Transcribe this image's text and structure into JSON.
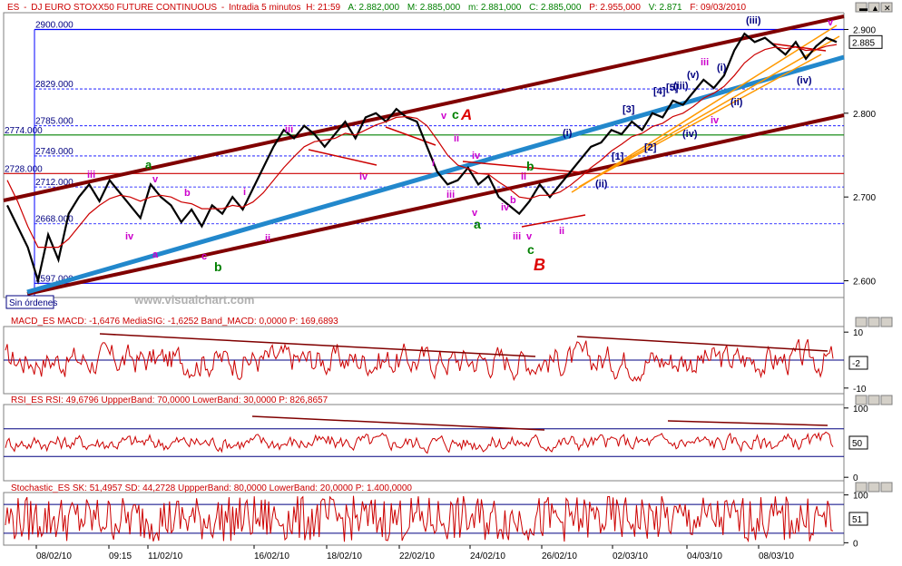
{
  "header": {
    "symbol": "ES",
    "title": "DJ EURO STOXX50 FUTURE CONTINUOUS",
    "interval": "Intradia 5 minutos",
    "h": "H: 21:59",
    "a": "A: 2.882,000",
    "m": "M: 2.885,000",
    "mm": "m: 2.881,000",
    "c": "C: 2.885,000",
    "p": "P: 2.955,000",
    "v": "V: 2.871",
    "f": "F: 09/03/2010"
  },
  "watermark": "www.visualchart.com",
  "orders_button": "Sin órdenes",
  "price_panel": {
    "levels": [
      {
        "label": "2900.000",
        "value": 2900,
        "color": "#0000ff"
      },
      {
        "label": "2829.000",
        "value": 2829,
        "color": "#0000ff"
      },
      {
        "label": "2785.000",
        "value": 2785,
        "color": "#0000ff"
      },
      {
        "label": "2774.000",
        "value": 2774,
        "color": "#008000"
      },
      {
        "label": "2749.000",
        "value": 2749,
        "color": "#0000ff"
      },
      {
        "label": "2728.000",
        "value": 2728,
        "color": "#cc0000"
      },
      {
        "label": "2712.000",
        "value": 2712,
        "color": "#0000ff"
      },
      {
        "label": "2668.000",
        "value": 2668,
        "color": "#0000ff"
      },
      {
        "label": "2597.000",
        "value": 2597,
        "color": "#0000ff"
      }
    ],
    "y_ticks": [
      "2.900",
      "2.800",
      "2.700",
      "2.600"
    ],
    "last_price": "2.885"
  },
  "chart_data": [
    {
      "type": "line",
      "panel": "price",
      "ylim": [
        2580,
        2920
      ],
      "x_ticks": [
        "08/02/10",
        "09:15",
        "11/02/10",
        "16/02/10",
        "18/02/10",
        "22/02/10",
        "24/02/10",
        "26/02/10",
        "02/03/10",
        "04/03/10",
        "08/03/10"
      ],
      "series": [
        {
          "values": [
            2690,
            2665,
            2640,
            2600,
            2655,
            2625,
            2680,
            2700,
            2715,
            2695,
            2720,
            2705,
            2690,
            2675,
            2715,
            2700,
            2690,
            2670,
            2685,
            2665,
            2690,
            2680,
            2700,
            2685,
            2710,
            2735,
            2760,
            2780,
            2770,
            2785,
            2775,
            2760,
            2775,
            2790,
            2770,
            2795,
            2800,
            2790,
            2805,
            2795,
            2790,
            2760,
            2730,
            2715,
            2720,
            2735,
            2715,
            2725,
            2700,
            2690,
            2680,
            2695,
            2715,
            2700,
            2715,
            2730,
            2745,
            2760,
            2765,
            2780,
            2775,
            2790,
            2780,
            2800,
            2795,
            2815,
            2810,
            2825,
            2840,
            2830,
            2845,
            2875,
            2895,
            2885,
            2890,
            2880,
            2870,
            2885,
            2865,
            2880,
            2890,
            2885
          ]
        },
        {
          "values": [
            2720,
            2695,
            2665,
            2640,
            2640,
            2640,
            2650,
            2665,
            2680,
            2690,
            2698,
            2702,
            2700,
            2695,
            2700,
            2702,
            2700,
            2694,
            2692,
            2686,
            2686,
            2686,
            2690,
            2688,
            2694,
            2705,
            2720,
            2735,
            2748,
            2760,
            2766,
            2768,
            2770,
            2776,
            2774,
            2780,
            2786,
            2790,
            2795,
            2796,
            2794,
            2785,
            2768,
            2750,
            2738,
            2734,
            2728,
            2727,
            2718,
            2710,
            2700,
            2698,
            2702,
            2702,
            2706,
            2714,
            2724,
            2735,
            2744,
            2755,
            2763,
            2772,
            2776,
            2784,
            2788,
            2796,
            2800,
            2808,
            2818,
            2824,
            2832,
            2845,
            2860,
            2870,
            2876,
            2879,
            2877,
            2879,
            2875,
            2876,
            2880,
            2882
          ]
        }
      ]
    },
    {
      "type": "line",
      "panel": "macd",
      "title": "MACD_ES MACD: -1,6476 MediaSIG: -1,6252 Band_MACD: 0,0000 P: 169,6893",
      "ylim": [
        -12,
        12
      ],
      "y_ticks": [
        "10",
        "-10"
      ],
      "last_value": "-2"
    },
    {
      "type": "line",
      "panel": "rsi",
      "title": "RSI_ES RSI: 49,6796 UppperBand: 70,0000 LowerBand: 30,0000 P: 826,8657",
      "ylim": [
        -5,
        105
      ],
      "y_ticks": [
        "100",
        "0"
      ],
      "last_value": "50"
    },
    {
      "type": "line",
      "panel": "stochastic",
      "title": "Stochastic_ES SK: 51,4957 SD: 44,2728 UppperBand: 80,0000 LowerBand: 20,0000 P: 1.400,0000",
      "ylim": [
        -5,
        105
      ],
      "y_ticks": [
        "100",
        "0"
      ],
      "last_value": "51"
    }
  ],
  "wave_labels": [
    {
      "text": "iii",
      "color": "#cc00cc"
    },
    {
      "text": "a",
      "color": "#008000"
    },
    {
      "text": "v",
      "color": "#cc00cc"
    },
    {
      "text": "b",
      "color": "#cc00cc"
    },
    {
      "text": "iv",
      "color": "#cc00cc"
    },
    {
      "text": "a",
      "color": "#cc00cc"
    },
    {
      "text": "c",
      "color": "#cc00cc"
    },
    {
      "text": "b",
      "color": "#008000"
    },
    {
      "text": "i",
      "color": "#cc00cc"
    },
    {
      "text": "ii",
      "color": "#cc00cc"
    },
    {
      "text": "iii",
      "color": "#cc00cc"
    },
    {
      "text": "iv",
      "color": "#cc00cc"
    },
    {
      "text": "v",
      "color": "#cc00cc"
    },
    {
      "text": "c",
      "color": "#008000"
    },
    {
      "text": "A",
      "color": "#dd0000"
    },
    {
      "text": "ii",
      "color": "#cc00cc"
    },
    {
      "text": "i",
      "color": "#cc00cc"
    },
    {
      "text": "iv",
      "color": "#cc00cc"
    },
    {
      "text": "iii",
      "color": "#cc00cc"
    },
    {
      "text": "v",
      "color": "#cc00cc"
    },
    {
      "text": "a",
      "color": "#008000"
    },
    {
      "text": "b",
      "color": "#008000"
    },
    {
      "text": "ii",
      "color": "#cc00cc"
    },
    {
      "text": "iv",
      "color": "#cc00cc"
    },
    {
      "text": "b",
      "color": "#cc00cc"
    },
    {
      "text": "iii",
      "color": "#cc00cc"
    },
    {
      "text": "v",
      "color": "#cc00cc"
    },
    {
      "text": "c",
      "color": "#008000"
    },
    {
      "text": "B",
      "color": "#dd0000"
    },
    {
      "text": "ii",
      "color": "#cc00cc"
    },
    {
      "text": "(i)",
      "color": "#000080"
    },
    {
      "text": "(ii)",
      "color": "#000080"
    },
    {
      "text": "[1]",
      "color": "#000080"
    },
    {
      "text": "[2]",
      "color": "#000080"
    },
    {
      "text": "[3]",
      "color": "#000080"
    },
    {
      "text": "[4]",
      "color": "#000080"
    },
    {
      "text": "[5]",
      "color": "#000080"
    },
    {
      "text": "(iii)",
      "color": "#000080"
    },
    {
      "text": "(iv)",
      "color": "#000080"
    },
    {
      "text": "(v)",
      "color": "#000080"
    },
    {
      "text": "iii",
      "color": "#cc00cc"
    },
    {
      "text": "iv",
      "color": "#cc00cc"
    },
    {
      "text": "(i)",
      "color": "#000080"
    },
    {
      "text": "(ii)",
      "color": "#000080"
    },
    {
      "text": "(iii)",
      "color": "#000080"
    },
    {
      "text": "(iv)",
      "color": "#000080"
    },
    {
      "text": "v",
      "color": "#cc00cc"
    }
  ],
  "colors": {
    "candle": "#000000",
    "moving_average": "#cc0000",
    "channel": "#800000",
    "trendline": "#2288cc",
    "fan": "#ff9900",
    "grid": "#0000ff",
    "oscillator": "#cc0000",
    "band": "#000080"
  }
}
